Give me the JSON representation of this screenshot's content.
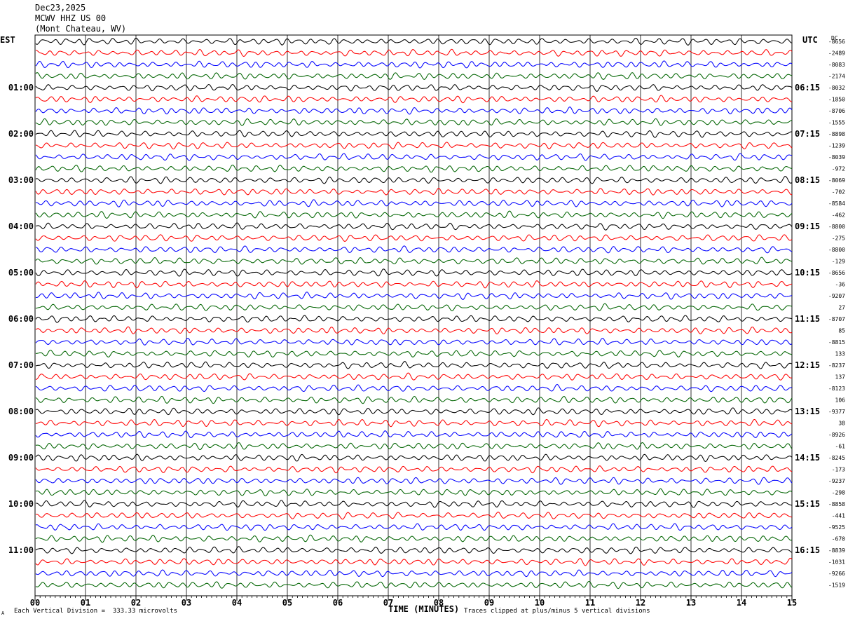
{
  "header": {
    "date": "Dec23,2025",
    "station": "MCWV HHZ US 00",
    "location": "(Mont Chateau, WV)"
  },
  "left_tz": "EST",
  "right_tz": "UTC",
  "dc_label": "DC",
  "footer": {
    "vertical_division": "Each Vertical Division =  333.33 microvolts",
    "clip_note": "Traces clipped at plus/minus 5 vertical divisions",
    "corner_mark": "A"
  },
  "chart_data": {
    "type": "line",
    "title": "",
    "xlabel": "TIME (MINUTES)",
    "xlim": [
      0,
      15
    ],
    "x_ticks": [
      "00",
      "01",
      "02",
      "03",
      "04",
      "05",
      "06",
      "07",
      "08",
      "09",
      "10",
      "11",
      "12",
      "13",
      "14",
      "15"
    ],
    "trace_colors": [
      "#000000",
      "#ff0000",
      "#0000ff",
      "#006400"
    ],
    "left_hour_labels": [
      "01:00",
      "02:00",
      "03:00",
      "04:00",
      "05:00",
      "06:00",
      "07:00",
      "08:00",
      "09:00",
      "10:00",
      "11:00"
    ],
    "right_hour_labels": [
      "06:15",
      "07:15",
      "08:15",
      "09:15",
      "10:15",
      "11:15",
      "12:15",
      "13:15",
      "14:15",
      "15:15",
      "16:15"
    ],
    "dc_offsets": [
      "-8656",
      "-2489",
      "-8083",
      "-2174",
      "-8032",
      "-1850",
      "-8706",
      "-1555",
      "-8898",
      "-1239",
      "-8039",
      "-972",
      "-8069",
      "-702",
      "-8584",
      "-462",
      "-8800",
      "-275",
      "-8800",
      "-129",
      "-8656",
      "-36",
      "-9207",
      "27",
      "-8707",
      "85",
      "-8815",
      "133",
      "-8237",
      "137",
      "-8123",
      "106",
      "-9377",
      "38",
      "-8926",
      "-61",
      "-8245",
      "-173",
      "-9237",
      "-298",
      "-8858",
      "-441",
      "-9525",
      "-670",
      "-8839",
      "-1031",
      "-9266",
      "-1519"
    ]
  }
}
